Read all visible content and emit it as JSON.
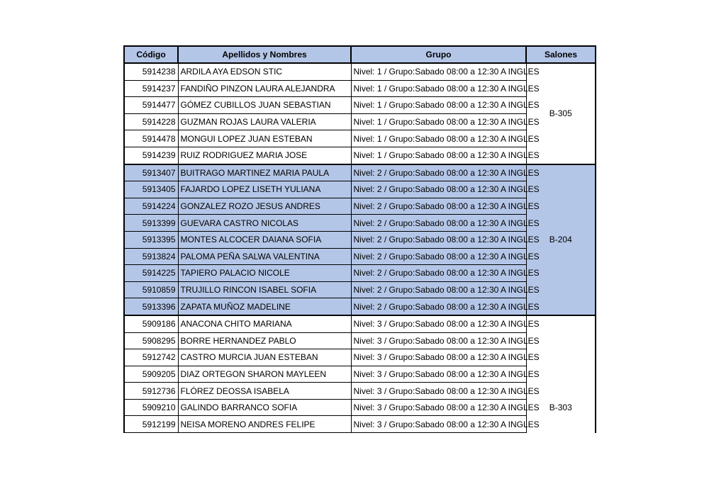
{
  "headers": {
    "code": "Código",
    "name": "Apellidos y Nombres",
    "group": "Grupo",
    "room": "Salones"
  },
  "header_color": "#b4c6e7",
  "groups": [
    {
      "room": "B-305",
      "highlight": false,
      "rows": [
        {
          "code": "5914238",
          "name": "ARDILA AYA EDSON STIC",
          "group": "Nivel: 1 / Grupo:Sabado 08:00 a 12:30 A INGLES"
        },
        {
          "code": "5914237",
          "name": "FANDIÑO PINZON LAURA ALEJANDRA",
          "group": "Nivel: 1 / Grupo:Sabado 08:00 a 12:30 A INGLES"
        },
        {
          "code": "5914477",
          "name": "GÓMEZ CUBILLOS JUAN SEBASTIAN",
          "group": "Nivel: 1 / Grupo:Sabado 08:00 a 12:30 A INGLES"
        },
        {
          "code": "5914228",
          "name": "GUZMAN ROJAS LAURA VALERIA",
          "group": "Nivel: 1 / Grupo:Sabado 08:00 a 12:30 A INGLES"
        },
        {
          "code": "5914478",
          "name": "MONGUI LOPEZ JUAN ESTEBAN",
          "group": "Nivel: 1 / Grupo:Sabado 08:00 a 12:30 A INGLES"
        },
        {
          "code": "5914239",
          "name": "RUIZ RODRIGUEZ MARIA JOSE",
          "group": "Nivel: 1 / Grupo:Sabado 08:00 a 12:30 A INGLES"
        }
      ]
    },
    {
      "room": "B-204",
      "highlight": true,
      "rows": [
        {
          "code": "5913407",
          "name": "BUITRAGO MARTINEZ MARIA PAULA",
          "group": "Nivel: 2 / Grupo:Sabado 08:00 a 12:30 A INGLES"
        },
        {
          "code": "5913405",
          "name": "FAJARDO LOPEZ LISETH YULIANA",
          "group": "Nivel: 2 / Grupo:Sabado 08:00 a 12:30 A INGLES"
        },
        {
          "code": "5914224",
          "name": "GONZALEZ ROZO JESUS ANDRES",
          "group": "Nivel: 2 / Grupo:Sabado 08:00 a 12:30 A INGLES"
        },
        {
          "code": "5913399",
          "name": "GUEVARA CASTRO NICOLAS",
          "group": "Nivel: 2 / Grupo:Sabado 08:00 a 12:30 A INGLES"
        },
        {
          "code": "5913395",
          "name": "MONTES ALCOCER DAIANA SOFIA",
          "group": "Nivel: 2 / Grupo:Sabado 08:00 a 12:30 A INGLES"
        },
        {
          "code": "5913824",
          "name": "PALOMA PEÑA SALWA VALENTINA",
          "group": "Nivel: 2 / Grupo:Sabado 08:00 a 12:30 A INGLES"
        },
        {
          "code": "5914225",
          "name": "TAPIERO PALACIO NICOLE",
          "group": "Nivel: 2 / Grupo:Sabado 08:00 a 12:30 A INGLES"
        },
        {
          "code": "5910859",
          "name": "TRUJILLO RINCON ISABEL SOFIA",
          "group": "Nivel: 2 / Grupo:Sabado 08:00 a 12:30 A INGLES"
        },
        {
          "code": "5913396",
          "name": "ZAPATA MUÑOZ MADELINE",
          "group": "Nivel: 2 / Grupo:Sabado 08:00 a 12:30 A INGLES"
        }
      ]
    },
    {
      "room": "B-303",
      "highlight": false,
      "rows": [
        {
          "code": "5909186",
          "name": "ANACONA CHITO MARIANA",
          "group": "Nivel: 3 / Grupo:Sabado 08:00 a 12:30 A INGLES"
        },
        {
          "code": "5908295",
          "name": "BORRE HERNANDEZ PABLO",
          "group": "Nivel: 3 / Grupo:Sabado 08:00 a 12:30 A INGLES"
        },
        {
          "code": "5912742",
          "name": "CASTRO MURCIA JUAN ESTEBAN",
          "group": "Nivel: 3 / Grupo:Sabado 08:00 a 12:30 A INGLES"
        },
        {
          "code": "5909205",
          "name": "DIAZ ORTEGON SHARON MAYLEEN",
          "group": "Nivel: 3 / Grupo:Sabado 08:00 a 12:30 A INGLES"
        },
        {
          "code": "5912736",
          "name": "FLÓREZ DEOSSA ISABELA",
          "group": "Nivel: 3 / Grupo:Sabado 08:00 a 12:30 A INGLES"
        },
        {
          "code": "5909210",
          "name": "GALINDO BARRANCO SOFIA",
          "group": "Nivel: 3 / Grupo:Sabado 08:00 a 12:30 A INGLES"
        },
        {
          "code": "5912199",
          "name": "NEISA MORENO ANDRES FELIPE",
          "group": "Nivel: 3 / Grupo:Sabado 08:00 a 12:30 A INGLES"
        }
      ]
    }
  ]
}
